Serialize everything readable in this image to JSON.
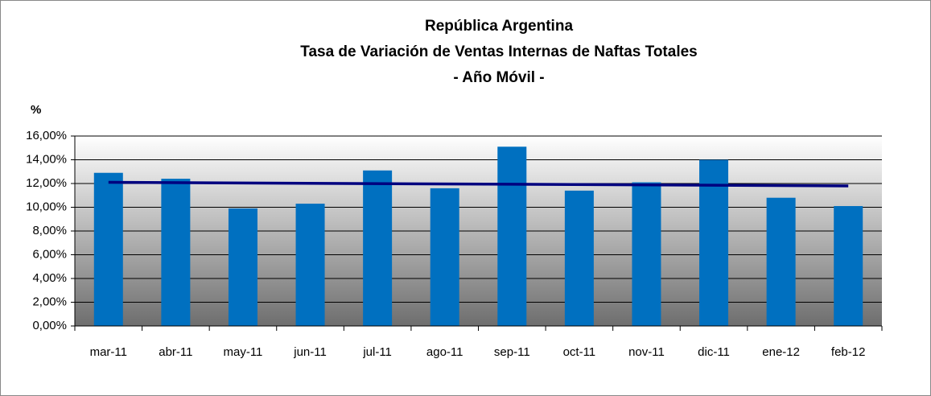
{
  "chart_data": {
    "type": "bar",
    "title": [
      "República Argentina",
      "Tasa de Variación  de Ventas Internas de Naftas Totales",
      "- Año Móvil -"
    ],
    "y_label": "%",
    "categories": [
      "mar-11",
      "abr-11",
      "may-11",
      "jun-11",
      "jul-11",
      "ago-11",
      "sep-11",
      "oct-11",
      "nov-11",
      "dic-11",
      "ene-12",
      "feb-12"
    ],
    "values": [
      12.9,
      12.4,
      9.9,
      10.3,
      13.1,
      11.6,
      15.1,
      11.4,
      12.1,
      14.0,
      10.8,
      10.1
    ],
    "color": "#0070c0",
    "trend_line": {
      "color": "#00007f",
      "start": 12.1,
      "end": 11.8
    },
    "ylim": [
      0,
      16
    ],
    "yticks": [
      {
        "value": 0,
        "label": "0,00%"
      },
      {
        "value": 2,
        "label": "2,00%"
      },
      {
        "value": 4,
        "label": "4,00%"
      },
      {
        "value": 6,
        "label": "6,00%"
      },
      {
        "value": 8,
        "label": "8,00%"
      },
      {
        "value": 10,
        "label": "10,00%"
      },
      {
        "value": 12,
        "label": "12,00%"
      },
      {
        "value": 14,
        "label": "14,00%"
      },
      {
        "value": 16,
        "label": "16,00%"
      }
    ],
    "grid": true
  }
}
